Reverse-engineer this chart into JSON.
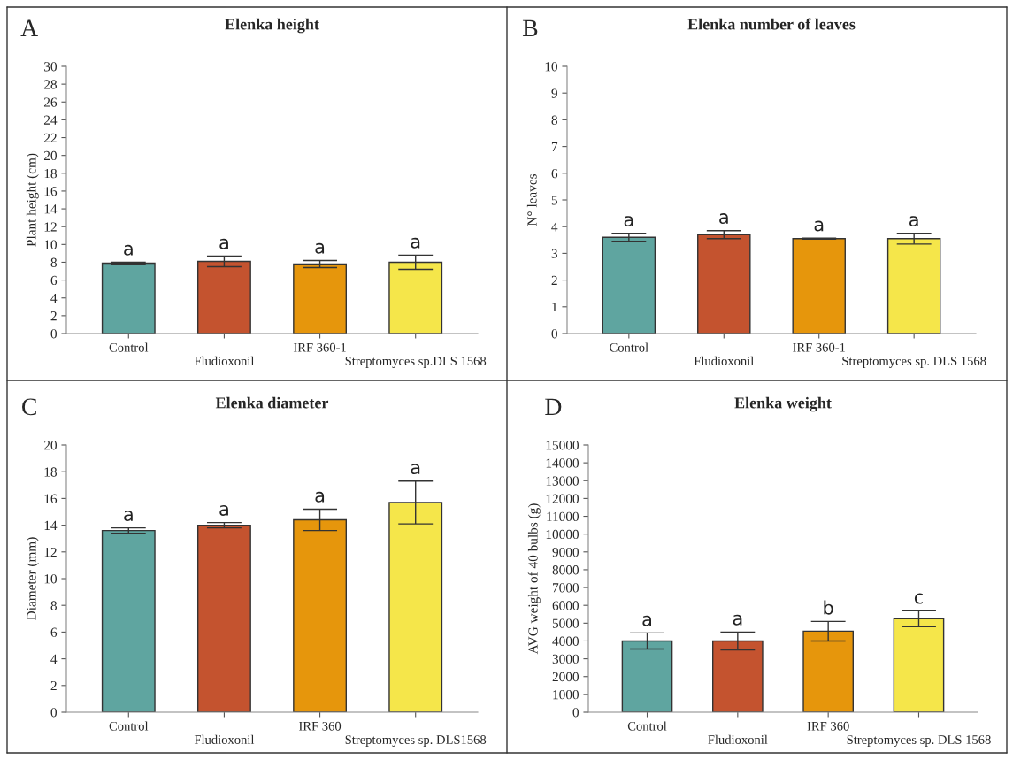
{
  "chart_data": [
    {
      "type": "bar",
      "title": "Elenka height",
      "ylabel": "Plant height (cm)",
      "categories": [
        "Control",
        "Fludioxonil",
        "IRF 360-1",
        "Streptomyces sp.DLS 1568"
      ],
      "values": [
        7.9,
        8.1,
        7.8,
        8.0
      ],
      "errors": [
        0.1,
        0.6,
        0.4,
        0.8
      ],
      "colors": [
        "#5fa5a0",
        "#c4532f",
        "#e6960c",
        "#f5e64a"
      ],
      "ylim": [
        0,
        30
      ],
      "yticks": [
        0,
        2,
        4,
        6,
        8,
        10,
        12,
        14,
        16,
        18,
        20,
        22,
        24,
        26,
        28,
        30
      ],
      "annotations": [
        "A",
        "a",
        "a",
        "a",
        "a"
      ]
    },
    {
      "type": "bar",
      "title": "Elenka number of leaves",
      "ylabel": "N° leaves",
      "categories": [
        "Control",
        "Fludioxonil",
        "IRF 360-1",
        "Streptomyces sp. DLS 1568"
      ],
      "values": [
        3.6,
        3.7,
        3.55,
        3.55
      ],
      "errors": [
        0.15,
        0.15,
        0.02,
        0.2
      ],
      "colors": [
        "#5fa5a0",
        "#c4532f",
        "#e6960c",
        "#f5e64a"
      ],
      "ylim": [
        0,
        10
      ],
      "yticks": [
        0,
        1,
        2,
        3,
        4,
        5,
        6,
        7,
        8,
        9,
        10
      ],
      "annotations": [
        "B",
        "a",
        "a",
        "a",
        "a"
      ]
    },
    {
      "type": "bar",
      "title": "Elenka diameter",
      "ylabel": "Diameter (mm)",
      "categories": [
        "Control",
        "Fludioxonil",
        "IRF 360",
        "Streptomyces sp. DLS1568"
      ],
      "values": [
        13.6,
        14.0,
        14.4,
        15.7
      ],
      "errors": [
        0.2,
        0.2,
        0.8,
        1.6
      ],
      "colors": [
        "#5fa5a0",
        "#c4532f",
        "#e6960c",
        "#f5e64a"
      ],
      "ylim": [
        0,
        20
      ],
      "yticks": [
        0,
        2,
        4,
        6,
        8,
        10,
        12,
        14,
        16,
        18,
        20
      ],
      "annotations": [
        "C",
        "a",
        "a",
        "a",
        "a"
      ]
    },
    {
      "type": "bar",
      "title": "Elenka weight",
      "ylabel": "AVG weight of 40 bulbs (g)",
      "categories": [
        "Control",
        "Fludioxonil",
        "IRF 360",
        "Streptomyces sp. DLS 1568"
      ],
      "values": [
        4000,
        4000,
        4550,
        5250
      ],
      "errors": [
        450,
        500,
        550,
        450
      ],
      "colors": [
        "#5fa5a0",
        "#c4532f",
        "#e6960c",
        "#f5e64a"
      ],
      "ylim": [
        0,
        15000
      ],
      "yticks": [
        0,
        1000,
        2000,
        3000,
        4000,
        5000,
        6000,
        7000,
        8000,
        9000,
        10000,
        11000,
        12000,
        13000,
        14000,
        15000
      ],
      "annotations": [
        "D",
        "a",
        "a",
        "b",
        "c"
      ]
    }
  ]
}
